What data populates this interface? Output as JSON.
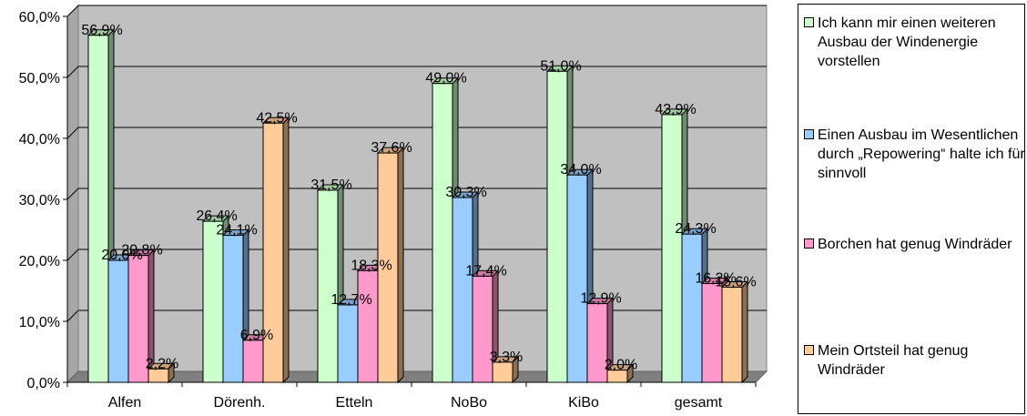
{
  "chart_data": {
    "type": "bar",
    "categories": [
      "Alfen",
      "Dörenh.",
      "Etteln",
      "NoBo",
      "KiBo",
      "gesamt"
    ],
    "series": [
      {
        "name": "Ich kann mir einen weiteren Ausbau der Windenergie vorstellen",
        "color": "#ccffcc",
        "values": [
          56.9,
          26.4,
          31.5,
          49.0,
          51.0,
          43.9
        ],
        "labels": [
          "56,9%",
          "26,4%",
          "31,5%",
          "49,0%",
          "51,0%",
          "43,9%"
        ]
      },
      {
        "name": "Einen Ausbau im Wesentlichen durch „Repowering“ halte ich für sinnvoll",
        "color": "#99ccff",
        "values": [
          20.0,
          24.1,
          12.7,
          30.3,
          34.0,
          24.3
        ],
        "labels": [
          "20,0%",
          "24,1%",
          "12,7%",
          "30,3%",
          "34,0%",
          "24,3%"
        ]
      },
      {
        "name": "Borchen hat genug Windräder",
        "color": "#ff99cc",
        "values": [
          20.8,
          6.9,
          18.3,
          17.4,
          12.9,
          16.2
        ],
        "labels": [
          "20,8%",
          "6,9%",
          "18,3%",
          "17,4%",
          "12,9%",
          "16,2%"
        ]
      },
      {
        "name": "Mein Ortsteil hat genug Windräder",
        "color": "#ffcc99",
        "values": [
          2.2,
          42.5,
          37.6,
          3.3,
          2.0,
          15.6
        ],
        "labels": [
          "2,2%",
          "42,5%",
          "37,6%",
          "3,3%",
          "2,0%",
          "15,6%"
        ]
      }
    ],
    "y_ticks": [
      "0,0%",
      "10,0%",
      "20,0%",
      "30,0%",
      "40,0%",
      "50,0%",
      "60,0%"
    ],
    "ylim": [
      0,
      60
    ],
    "grid": true,
    "legend_position": "right",
    "wall_color": "#c0c0c0",
    "floor_color": "#808080"
  }
}
